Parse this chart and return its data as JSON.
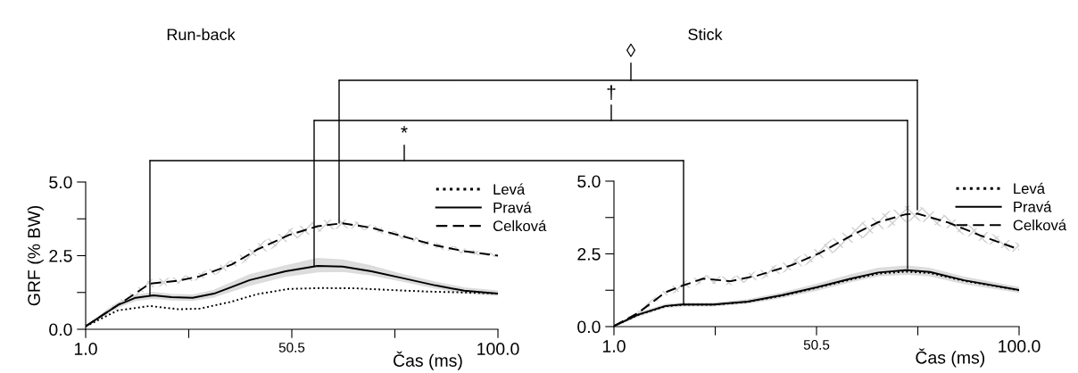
{
  "chart_data": [
    {
      "type": "line",
      "title": "Run-back",
      "xlabel": "Čas (ms)",
      "ylabel": "GRF (% BW)",
      "xlim": [
        1,
        100
      ],
      "xticks": [
        {
          "value": 1,
          "label": "1.0"
        },
        {
          "value": 25.75,
          "label": null
        },
        {
          "value": 50.5,
          "label": "50.5"
        },
        {
          "value": 75.25,
          "label": null
        },
        {
          "value": 100,
          "label": "100.0"
        }
      ],
      "ylim": [
        0,
        5
      ],
      "yticks": [
        {
          "value": 0,
          "label": "0.0"
        },
        {
          "value": 1.25,
          "label": null
        },
        {
          "value": 2.5,
          "label": "2.5"
        },
        {
          "value": 3.75,
          "label": null
        },
        {
          "value": 5,
          "label": "5.0"
        }
      ],
      "legend": "top right",
      "grid": false,
      "annotations": [
        "*",
        "†",
        "◊"
      ],
      "series": [
        {
          "name": "Levá",
          "color": "#000000",
          "line_style": "dotted",
          "x": [
            1,
            8.7,
            16.4,
            23.3,
            28.4,
            36.1,
            42.1,
            49.8,
            57.6,
            66.1,
            74.7,
            83.3,
            91.9,
            100
          ],
          "values": [
            0.1,
            0.64,
            0.79,
            0.68,
            0.7,
            0.94,
            1.19,
            1.37,
            1.4,
            1.39,
            1.33,
            1.28,
            1.25,
            1.21
          ]
        },
        {
          "name": "Pravá",
          "color": "#000000",
          "line_style": "solid",
          "x": [
            1,
            8.7,
            13,
            17.3,
            21.6,
            26.7,
            31.8,
            40.4,
            49,
            56.7,
            62.7,
            69.6,
            77.3,
            85,
            91.9,
            100
          ],
          "values": [
            0.1,
            0.82,
            1.07,
            1.15,
            1.09,
            1.07,
            1.21,
            1.67,
            1.97,
            2.15,
            2.13,
            1.97,
            1.73,
            1.49,
            1.31,
            1.21
          ],
          "lower": [
            0.08,
            0.75,
            0.98,
            1.05,
            1.0,
            0.98,
            1.1,
            1.5,
            1.8,
            1.95,
            1.97,
            1.85,
            1.63,
            1.4,
            1.24,
            1.15
          ],
          "upper": [
            0.12,
            0.9,
            1.15,
            1.25,
            1.18,
            1.16,
            1.32,
            1.85,
            2.15,
            2.4,
            2.35,
            2.15,
            1.85,
            1.6,
            1.4,
            1.3
          ]
        },
        {
          "name": "Celková",
          "color": "#000000",
          "line_style": "dashed",
          "x": [
            1,
            8.7,
            16.4,
            23.3,
            28.4,
            36.1,
            42.1,
            49.8,
            56.7,
            62.7,
            69.6,
            77.3,
            85,
            91.9,
            100
          ],
          "values": [
            0.1,
            0.82,
            1.55,
            1.65,
            1.8,
            2.2,
            2.7,
            3.2,
            3.5,
            3.6,
            3.45,
            3.15,
            2.85,
            2.65,
            2.5
          ],
          "lower": [
            0.08,
            0.7,
            1.4,
            1.55,
            1.68,
            2.05,
            2.5,
            3.0,
            3.3,
            3.45,
            3.35,
            3.05,
            2.75,
            2.55,
            2.45
          ],
          "upper": [
            0.12,
            0.95,
            1.7,
            1.78,
            1.92,
            2.35,
            2.9,
            3.4,
            3.7,
            3.75,
            3.55,
            3.25,
            2.95,
            2.75,
            2.55
          ]
        }
      ]
    },
    {
      "type": "line",
      "title": "Stick",
      "xlabel": "Čas (ms)",
      "xlim": [
        1,
        100
      ],
      "xticks": [
        {
          "value": 1,
          "label": "1.0"
        },
        {
          "value": 25.75,
          "label": null
        },
        {
          "value": 50.5,
          "label": "50.5"
        },
        {
          "value": 75.25,
          "label": null
        },
        {
          "value": 100,
          "label": "100.0"
        }
      ],
      "ylim": [
        0,
        5
      ],
      "yticks": [
        {
          "value": 0,
          "label": "0.0"
        },
        {
          "value": 1.25,
          "label": null
        },
        {
          "value": 2.5,
          "label": "2.5"
        },
        {
          "value": 3.75,
          "label": null
        },
        {
          "value": 5,
          "label": "5.0"
        }
      ],
      "legend": "top right",
      "grid": false,
      "series": [
        {
          "name": "Levá",
          "color": "#000000",
          "line_style": "dotted",
          "x": [
            1,
            6.9,
            13.6,
            17.8,
            25.3,
            33.7,
            42.1,
            50.5,
            58.9,
            65.6,
            72.3,
            78.2,
            86.6,
            100
          ],
          "values": [
            0.02,
            0.4,
            0.7,
            0.75,
            0.75,
            0.85,
            1.06,
            1.33,
            1.62,
            1.82,
            1.89,
            1.84,
            1.57,
            1.25
          ]
        },
        {
          "name": "Pravá",
          "color": "#000000",
          "line_style": "solid",
          "x": [
            1,
            6.9,
            13.6,
            17.8,
            25.3,
            33.7,
            42.1,
            50.5,
            58.9,
            65.6,
            72.3,
            78.2,
            86.6,
            100
          ],
          "values": [
            0.02,
            0.41,
            0.71,
            0.76,
            0.76,
            0.86,
            1.08,
            1.35,
            1.65,
            1.86,
            1.94,
            1.88,
            1.59,
            1.26
          ],
          "lower": [
            0.0,
            0.36,
            0.66,
            0.71,
            0.71,
            0.8,
            1.0,
            1.25,
            1.55,
            1.75,
            1.8,
            1.75,
            1.48,
            1.18
          ],
          "upper": [
            0.04,
            0.46,
            0.76,
            0.81,
            0.81,
            0.92,
            1.16,
            1.45,
            1.78,
            2.0,
            2.08,
            2.0,
            1.7,
            1.34
          ]
        },
        {
          "name": "Celková",
          "color": "#000000",
          "line_style": "dashed",
          "x": [
            1,
            6.9,
            13.6,
            17.8,
            22.8,
            29.5,
            36.2,
            44.6,
            51.3,
            58.9,
            65.6,
            72.3,
            75.2,
            82.4,
            90.8,
            100
          ],
          "values": [
            0.02,
            0.47,
            1.18,
            1.41,
            1.65,
            1.56,
            1.76,
            2.12,
            2.53,
            3.12,
            3.59,
            3.86,
            3.88,
            3.59,
            3.12,
            2.65
          ],
          "lower": [
            0.0,
            0.4,
            1.05,
            1.25,
            1.5,
            1.42,
            1.6,
            1.95,
            2.3,
            2.85,
            3.3,
            3.6,
            3.65,
            3.38,
            2.92,
            2.5
          ],
          "upper": [
            0.04,
            0.55,
            1.3,
            1.55,
            1.78,
            1.7,
            1.92,
            2.3,
            2.75,
            3.4,
            3.85,
            4.15,
            4.15,
            3.8,
            3.32,
            2.85
          ]
        }
      ]
    }
  ]
}
